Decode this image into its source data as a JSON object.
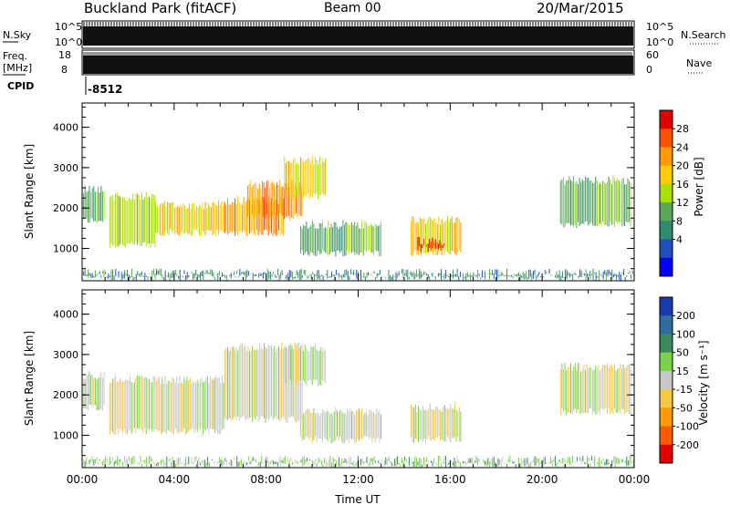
{
  "header": {
    "title": "Buckland Park (fitACF)",
    "beam": "Beam 00",
    "date": "20/Mar/2015"
  },
  "status_panel": {
    "nsky_label": "N.Sky",
    "nsky_ticks": [
      "10^5",
      "10^0"
    ],
    "nsearch_label": "N.Search",
    "nsearch_ticks": [
      "10^5",
      "10^0"
    ],
    "freq_label": "Freq.",
    "freq_unit": "[MHz]",
    "freq_ticks": [
      "18",
      "8"
    ],
    "nave_label": "Nave",
    "nave_ticks": [
      "60",
      "0"
    ],
    "cpid_label": "CPID",
    "cpid_value": "-8512"
  },
  "chart_data": [
    {
      "type": "heatmap",
      "name": "power",
      "ylabel": "Slant Range [km]",
      "yticks": [
        1000,
        2000,
        3000,
        4000
      ],
      "ylim": [
        200,
        4600
      ],
      "xlim": [
        0,
        24
      ],
      "colorbar": {
        "label": "Power [dB]",
        "ticks": [
          "28",
          "24",
          "20",
          "16",
          "12",
          "8",
          "4"
        ],
        "colors": [
          "#e00000",
          "#ff5000",
          "#ff9a00",
          "#ffcc00",
          "#a8e000",
          "#5aa85a",
          "#2e8b6e",
          "#2050c0",
          "#0000ff"
        ]
      },
      "regions": [
        {
          "t": [
            0.0,
            1.0
          ],
          "r": [
            1600,
            2600
          ],
          "level": 3
        },
        {
          "t": [
            1.2,
            3.2
          ],
          "r": [
            1000,
            2400
          ],
          "level": 4
        },
        {
          "t": [
            3.2,
            6.2
          ],
          "r": [
            1300,
            2200
          ],
          "level": 5
        },
        {
          "t": [
            6.2,
            8.8
          ],
          "r": [
            1300,
            2300
          ],
          "level": 6
        },
        {
          "t": [
            7.2,
            9.6
          ],
          "r": [
            1700,
            2700
          ],
          "level": 6
        },
        {
          "t": [
            8.8,
            10.6
          ],
          "r": [
            2200,
            3300
          ],
          "level": 5
        },
        {
          "t": [
            9.5,
            13.0
          ],
          "r": [
            800,
            1700
          ],
          "level": 3
        },
        {
          "t": [
            14.3,
            16.5
          ],
          "r": [
            800,
            1800
          ],
          "level": 5
        },
        {
          "t": [
            14.6,
            15.8
          ],
          "r": [
            900,
            1300
          ],
          "level": 8
        },
        {
          "t": [
            20.8,
            23.9
          ],
          "r": [
            1500,
            2800
          ],
          "level": 3
        },
        {
          "t": [
            0.0,
            24.0
          ],
          "r": [
            200,
            500
          ],
          "level": 2
        }
      ]
    },
    {
      "type": "heatmap",
      "name": "velocity",
      "ylabel": "Slant Range [km]",
      "yticks": [
        1000,
        2000,
        3000,
        4000
      ],
      "ylim": [
        200,
        4600
      ],
      "xlim": [
        0,
        24
      ],
      "xlabel": "Time UT",
      "xticks": [
        "00:00",
        "04:00",
        "08:00",
        "12:00",
        "16:00",
        "20:00",
        "00:00"
      ],
      "colorbar": {
        "label": "Velocity [m s⁻¹]",
        "ticks": [
          "200",
          "100",
          "50",
          "15",
          "-15",
          "-50",
          "-100",
          "-200"
        ],
        "colors": [
          "#1a3ab0",
          "#2e6e9e",
          "#3a8a5a",
          "#7ad34a",
          "#c8c8c8",
          "#f5c840",
          "#ff9a00",
          "#ff5a00",
          "#e00000"
        ]
      },
      "regions": [
        {
          "t": [
            0.0,
            1.0
          ],
          "r": [
            1600,
            2600
          ],
          "level": 4
        },
        {
          "t": [
            1.2,
            6.2
          ],
          "r": [
            1000,
            2500
          ],
          "level": 4
        },
        {
          "t": [
            6.2,
            9.6
          ],
          "r": [
            1300,
            3300
          ],
          "level": 4
        },
        {
          "t": [
            8.8,
            10.6
          ],
          "r": [
            2200,
            3300
          ],
          "level": 4
        },
        {
          "t": [
            9.5,
            13.0
          ],
          "r": [
            800,
            1700
          ],
          "level": 4
        },
        {
          "t": [
            14.3,
            16.5
          ],
          "r": [
            800,
            1800
          ],
          "level": 4
        },
        {
          "t": [
            20.8,
            23.9
          ],
          "r": [
            1500,
            2800
          ],
          "level": 4
        },
        {
          "t": [
            0.0,
            24.0
          ],
          "r": [
            200,
            500
          ],
          "level": 5
        }
      ]
    }
  ]
}
